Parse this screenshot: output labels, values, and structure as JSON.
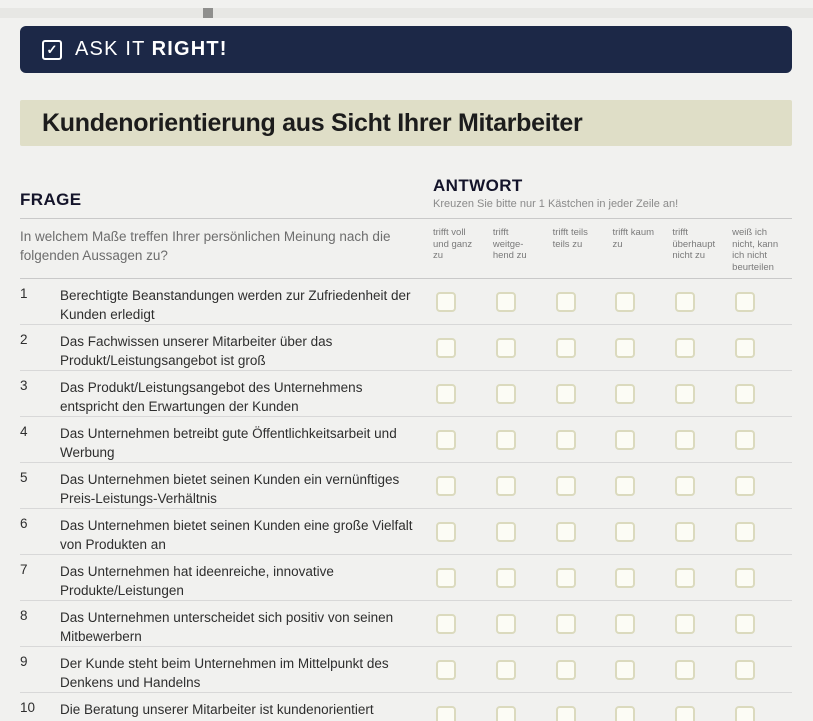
{
  "header": {
    "check_glyph": "✓",
    "title_regular": "ASK IT",
    "title_bold": "RIGHT!"
  },
  "banner": {
    "title": "Kundenorientierung aus Sicht Ihrer Mitarbeiter"
  },
  "survey": {
    "frage_label": "FRAGE",
    "antwort_label": "ANTWORT",
    "antwort_hint": "Kreuzen Sie bitte nur 1 Kästchen in jeder Zeile an!",
    "intro": "In welchem Maße treffen Ihrer persönlichen Meinung nach die folgenden Aussagen zu?",
    "answer_columns": [
      "trifft voll und ganz zu",
      "trifft weitge-hend zu",
      "trifft teils teils zu",
      "trifft kaum zu",
      "trifft überhaupt nicht zu",
      "weiß ich nicht, kann ich nicht beurteilen"
    ],
    "questions": [
      {
        "num": "1",
        "text": "Berechtigte Beanstandungen werden zur Zufriedenheit der Kunden erledigt"
      },
      {
        "num": "2",
        "text": "Das Fachwissen unserer Mitarbeiter über das Produkt/Leistungsangebot ist groß"
      },
      {
        "num": "3",
        "text": "Das Produkt/Leistungsangebot des Unternehmens entspricht den Erwartungen der Kunden"
      },
      {
        "num": "4",
        "text": "Das Unternehmen betreibt gute Öffentlichkeitsarbeit und Werbung"
      },
      {
        "num": "5",
        "text": "Das Unternehmen bietet seinen Kunden ein vernünftiges Preis-Leistungs-Verhältnis"
      },
      {
        "num": "6",
        "text": "Das Unternehmen bietet seinen Kunden eine große Vielfalt von Produkten an"
      },
      {
        "num": "7",
        "text": "Das Unternehmen hat ideenreiche, innovative Produkte/Leistungen"
      },
      {
        "num": "8",
        "text": "Das Unternehmen unterscheidet sich positiv von seinen Mitbewerbern"
      },
      {
        "num": "9",
        "text": "Der Kunde steht beim Unternehmen im Mittelpunkt des Denkens und Handelns"
      },
      {
        "num": "10",
        "text": "Die Beratung unserer Mitarbeiter ist kundenorientiert"
      }
    ]
  }
}
